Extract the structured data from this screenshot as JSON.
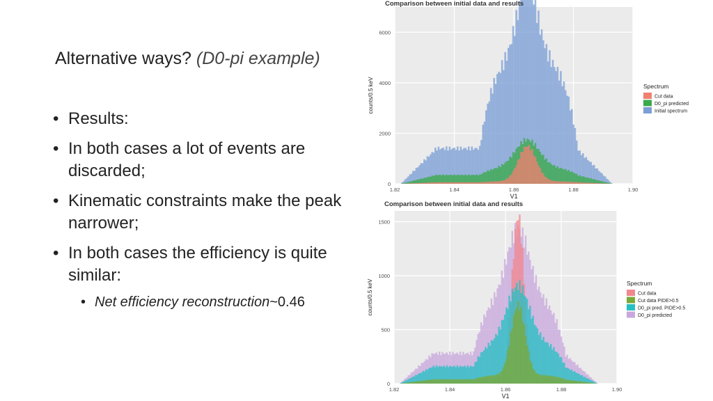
{
  "slide": {
    "title_main": "Alternative ways?",
    "title_sub": "(D0-pi example)",
    "bullets": [
      "Results:",
      "In both cases a lot of events are discarded;",
      "Kinematic constraints make the peak narrower;",
      "In both cases the efficiency is quite similar:"
    ],
    "sub_bullet": {
      "label": "Net efficiency reconstruction",
      "value": "~0.46"
    }
  },
  "chart_data": [
    {
      "type": "histogram",
      "title": "Comparison between initial data and results",
      "xlabel": "V1",
      "ylabel": "counts/0.5 keV",
      "xlim": [
        1.82,
        1.9
      ],
      "ylim": [
        0,
        7000
      ],
      "xticks": [
        "1.82",
        "1.84",
        "1.86",
        "1.88",
        "1.90"
      ],
      "yticks": [
        "0",
        "2000",
        "4000",
        "6000"
      ],
      "legend_title": "Spectrum",
      "legend_position": "right",
      "series": [
        {
          "name": "Initial spectrum",
          "color": "#7b9fd6",
          "profile": {
            "flat": 1400,
            "plateau": 3400,
            "peak": 3000,
            "sigma": 0.0035
          }
        },
        {
          "name": "D0_pi predicted",
          "color": "#3aaa4a",
          "profile": {
            "flat": 350,
            "plateau": 300,
            "peak": 1100,
            "sigma": 0.004
          }
        },
        {
          "name": "Cut data",
          "color": "#f08070",
          "profile": {
            "flat": 60,
            "plateau": 40,
            "peak": 1400,
            "sigma": 0.003
          }
        }
      ],
      "legend": [
        "Cut data",
        "D0_pi predicted",
        "Initial spectrum"
      ]
    },
    {
      "type": "histogram",
      "title": "Comparison between initial data and results",
      "xlabel": "V1",
      "ylabel": "counts/0.5 keV",
      "xlim": [
        1.82,
        1.9
      ],
      "ylim": [
        0,
        1600
      ],
      "xticks": [
        "1.82",
        "1.84",
        "1.86",
        "1.88",
        "1.90"
      ],
      "yticks": [
        "0",
        "500",
        "1000",
        "1500"
      ],
      "legend_title": "Spectrum",
      "legend_position": "right",
      "series": [
        {
          "name": "D0_pi predicted",
          "color": "#c8a8dc",
          "profile": {
            "flat": 280,
            "plateau": 500,
            "peak": 650,
            "sigma": 0.004
          }
        },
        {
          "name": "Cut data",
          "color": "#f08890",
          "profile": {
            "flat": 30,
            "plateau": 20,
            "peak": 1500,
            "sigma": 0.0022
          }
        },
        {
          "name": "D0_pi pred. PIDE>0.5",
          "color": "#26c0c4",
          "profile": {
            "flat": 160,
            "plateau": 230,
            "peak": 520,
            "sigma": 0.004
          }
        },
        {
          "name": "Cut data PIDE>0.5",
          "color": "#7aaa3a",
          "profile": {
            "flat": 40,
            "plateau": 40,
            "peak": 650,
            "sigma": 0.0025
          }
        }
      ],
      "legend": [
        "Cut data",
        "Cut data PIDE>0.5",
        "D0_pi pred. PIDE>0.5",
        "D0_pi predicted"
      ]
    }
  ]
}
